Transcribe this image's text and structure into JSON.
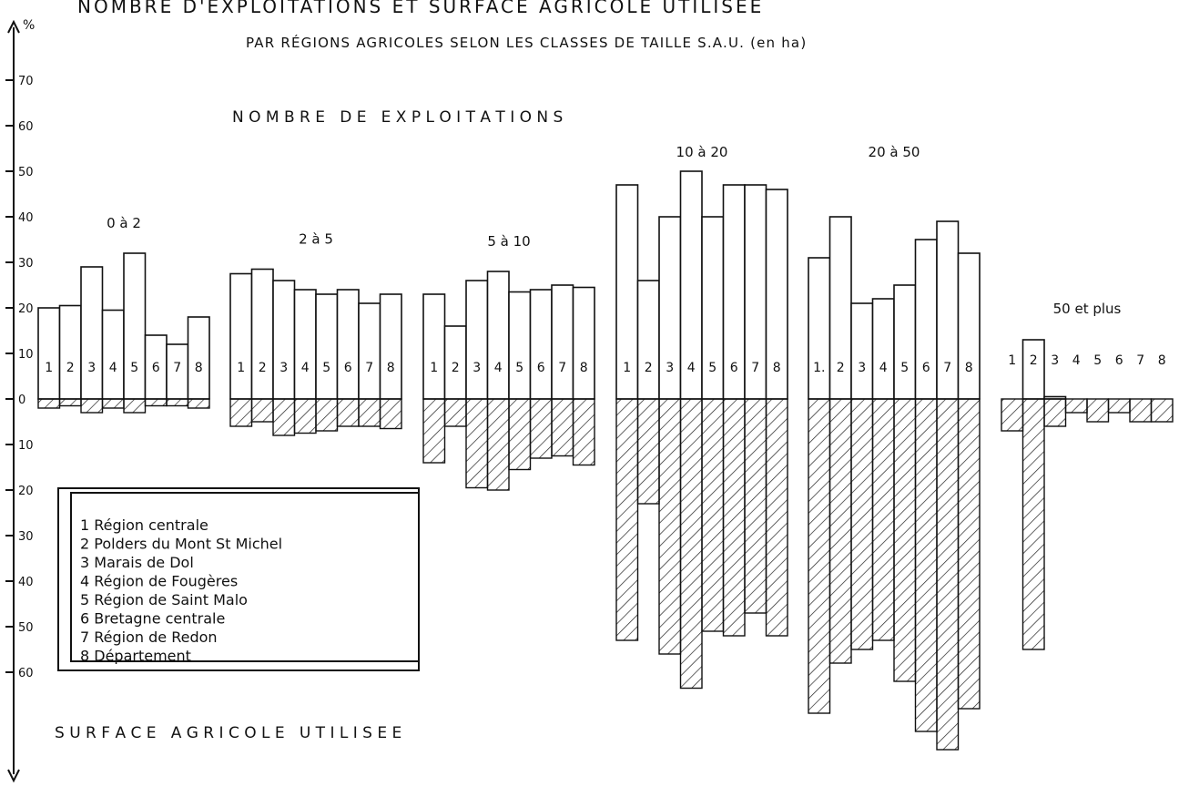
{
  "chart_data": {
    "type": "bar",
    "title": "NOMBRE D'EXPLOITATIONS ET SURFACE AGRICOLE UTILISEE",
    "subtitle": "PAR RÉGIONS AGRICOLES SELON LES CLASSES DE TAILLE S.A.U. (en ha)",
    "upper_label": "N O M B R E   D E   E X P L O I T A T I O N S",
    "lower_label": "S U R F A C E   A G R I C O L E   U T I L I S E E",
    "y_unit": "%",
    "y_ticks_upper": [
      10,
      20,
      30,
      40,
      50,
      60,
      70
    ],
    "y_ticks_lower": [
      10,
      20,
      30,
      40,
      50,
      60
    ],
    "y_zero_label": "0",
    "ylim": [
      -72,
      78
    ],
    "legend": [
      "1 Région centrale",
      "2 Polders du Mont St Michel",
      "3 Marais de Dol",
      "4 Région de Fougères",
      "5 Région de Saint Malo",
      "6 Bretagne centrale",
      "7 Région de Redon",
      "8 Département"
    ],
    "groups": [
      {
        "label": "0 à 2",
        "bar_labels": [
          "1",
          "2",
          "3",
          "4",
          "5",
          "6",
          "7",
          "8"
        ],
        "exploitations": [
          20,
          20.5,
          29,
          19.5,
          32,
          14,
          12,
          18
        ],
        "surface": [
          2,
          1.5,
          3,
          2,
          3,
          1.5,
          1.5,
          2
        ]
      },
      {
        "label": "2 à 5",
        "bar_labels": [
          "1",
          "2",
          "3",
          "4",
          "5",
          "6",
          "7",
          "8"
        ],
        "exploitations": [
          27.5,
          28.5,
          26,
          24,
          23,
          24,
          21,
          23
        ],
        "surface": [
          6,
          5,
          8,
          7.5,
          7,
          6,
          6,
          6.5
        ]
      },
      {
        "label": "5 à 10",
        "bar_labels": [
          "1",
          "2",
          "3",
          "4",
          "5",
          "6",
          "7",
          "8"
        ],
        "exploitations": [
          23,
          16,
          26,
          28,
          23.5,
          24,
          25,
          24.5
        ],
        "surface": [
          14,
          6,
          19.5,
          20,
          15.5,
          13,
          12.5,
          14.5
        ]
      },
      {
        "label": "10 à 20",
        "bar_labels": [
          "1",
          "2",
          "3",
          "4",
          "5",
          "6",
          "7",
          "8"
        ],
        "exploitations": [
          47,
          26,
          40,
          50,
          40,
          47,
          47,
          46
        ],
        "surface": [
          53,
          23,
          56,
          63.5,
          51,
          52,
          47,
          52
        ]
      },
      {
        "label": "20 à 50",
        "bar_labels": [
          "1.",
          "2",
          "3",
          "4",
          "5",
          "6",
          "7",
          "8"
        ],
        "exploitations": [
          31,
          40,
          21,
          22,
          25,
          35,
          39,
          32
        ],
        "surface": [
          69,
          58,
          55,
          53,
          62,
          73,
          77,
          68
        ]
      },
      {
        "label": "50 et plus",
        "bar_labels": [
          "1",
          "2",
          "3",
          "4",
          "5",
          "6",
          "7",
          "8"
        ],
        "exploitations": [
          0,
          13,
          0.5,
          0,
          0,
          0,
          0,
          0
        ],
        "surface": [
          7,
          55,
          6,
          3,
          5,
          3,
          5,
          5
        ]
      }
    ]
  }
}
